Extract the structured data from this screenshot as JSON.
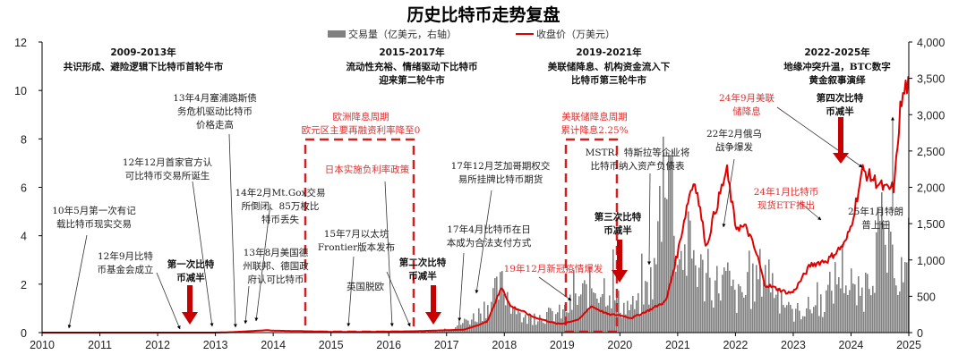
{
  "chart_data": {
    "type": "line+bar",
    "title": "历史比特币走势复盘",
    "legend": [
      {
        "name": "交易量（亿美元，右轴）",
        "type": "bar",
        "color": "#808080"
      },
      {
        "name": "收盘价（万美元）",
        "type": "line",
        "color": "#e00000"
      }
    ],
    "legend_position": "top",
    "x_ticks": [
      "2010",
      "2011",
      "2012",
      "2013",
      "2014",
      "2015",
      "2016",
      "2017",
      "2018",
      "2019",
      "2020",
      "2021",
      "2022",
      "2023",
      "2024",
      "2025"
    ],
    "y_left": {
      "label": "收盘价（万美元）",
      "ticks": [
        0,
        2,
        4,
        6,
        8,
        10,
        12
      ],
      "range": [
        0,
        12
      ]
    },
    "y_right": {
      "label": "交易量（亿美元）",
      "ticks": [
        "0",
        "500",
        "1,000",
        "1,500",
        "2,000",
        "2,500",
        "3,000",
        "3,500",
        "4,000"
      ],
      "range": [
        0,
        4000
      ]
    },
    "grid": false,
    "series": [
      {
        "name": "收盘价（万美元）",
        "axis": "left",
        "x": [
          2010.0,
          2012.0,
          2013.0,
          2013.3,
          2013.9,
          2014.0,
          2014.5,
          2015.0,
          2015.5,
          2016.0,
          2016.5,
          2017.0,
          2017.3,
          2017.5,
          2017.7,
          2017.96,
          2018.1,
          2018.3,
          2018.5,
          2018.9,
          2019.0,
          2019.3,
          2019.5,
          2019.8,
          2020.0,
          2020.2,
          2020.5,
          2020.8,
          2021.0,
          2021.2,
          2021.3,
          2021.5,
          2021.6,
          2021.85,
          2022.0,
          2022.2,
          2022.4,
          2022.5,
          2022.9,
          2023.0,
          2023.3,
          2023.6,
          2023.9,
          2024.0,
          2024.2,
          2024.4,
          2024.6,
          2024.75,
          2024.85,
          2024.95,
          2025.0
        ],
        "y": [
          0.0,
          0.001,
          0.001,
          0.02,
          0.1,
          0.08,
          0.06,
          0.03,
          0.03,
          0.04,
          0.06,
          0.1,
          0.12,
          0.27,
          0.45,
          1.9,
          1.1,
          0.9,
          0.65,
          0.37,
          0.37,
          0.55,
          1.1,
          0.75,
          0.72,
          0.6,
          0.92,
          1.3,
          3.3,
          5.7,
          6.3,
          3.5,
          4.6,
          6.7,
          4.4,
          4.3,
          3.0,
          2.0,
          1.65,
          1.67,
          2.8,
          3.0,
          3.7,
          4.4,
          6.7,
          6.3,
          5.9,
          6.0,
          9.2,
          10.2,
          10.2
        ]
      },
      {
        "name": "交易量（亿美元，右轴）",
        "axis": "right",
        "x": [
          2010,
          2016.5,
          2017.0,
          2017.5,
          2017.96,
          2018.3,
          2019.0,
          2019.5,
          2019.8,
          2020.0,
          2020.3,
          2020.6,
          2020.8,
          2021.0,
          2021.2,
          2021.5,
          2021.85,
          2022.0,
          2022.2,
          2022.5,
          2022.9,
          2023.0,
          2023.5,
          2023.85,
          2024.0,
          2024.2,
          2024.5,
          2024.7,
          2024.9,
          2025.0
        ],
        "y": [
          0,
          5,
          40,
          250,
          700,
          200,
          300,
          700,
          700,
          400,
          400,
          900,
          3300,
          1000,
          1300,
          700,
          800,
          500,
          600,
          1000,
          300,
          300,
          450,
          1000,
          550,
          600,
          1500,
          1000,
          900,
          750
        ]
      }
    ],
    "annotations": {
      "eras": [
        {
          "year_range": "2009-2013年",
          "desc": [
            "共识形成、避险逻辑下比特币首轮牛市"
          ]
        },
        {
          "year_range": "2015-2017年",
          "desc": [
            "流动性充裕、情绪驱动下比特币",
            "迎来第二轮牛市"
          ]
        },
        {
          "year_range": "2019-2021年",
          "desc": [
            "美联储降息、机构资金流入下",
            "比特币第三轮牛市"
          ]
        },
        {
          "year_range": "2022-2025年",
          "desc": [
            "地缘冲突升温，BTC数字",
            "黄金叙事演绎"
          ]
        }
      ],
      "events": [
        {
          "lines": [
            "10年5月第一次有记",
            "载比特币现实交易"
          ],
          "color": "black"
        },
        {
          "lines": [
            "12年9月比特",
            "币基金会成立"
          ],
          "color": "black"
        },
        {
          "lines": [
            "12年12月首家官方认",
            "可比特币交易所诞生"
          ],
          "color": "black"
        },
        {
          "lines": [
            "13年4月塞浦路斯债",
            "务危机驱动比特币",
            "价格走高"
          ],
          "color": "black"
        },
        {
          "lines": [
            "14年2月Mt.Gox交易",
            "所倒闭、85万枚比",
            "特币丢失"
          ],
          "color": "black"
        },
        {
          "lines": [
            "13年8月美国德",
            "州联邦、德国政",
            "府认可比特币"
          ],
          "color": "black"
        },
        {
          "lines": [
            "15年7月以太坊",
            "Frontier版本发布"
          ],
          "color": "black"
        },
        {
          "lines": [
            "英国脱欧"
          ],
          "color": "black"
        },
        {
          "lines": [
            "日本实施负利率政策"
          ],
          "color": "red"
        },
        {
          "lines": [
            "欧洲降息周期",
            "欧元区主要再融资利率降至0"
          ],
          "color": "red"
        },
        {
          "lines": [
            "17年12月芝加哥期权交",
            "易所挂牌比特币期货"
          ],
          "color": "black"
        },
        {
          "lines": [
            "17年4月比特币在日",
            "本成为合法支付方式"
          ],
          "color": "black"
        },
        {
          "lines": [
            "19年12月新冠疫情爆发"
          ],
          "color": "red"
        },
        {
          "lines": [
            "美联储降息周期",
            "累计降息2.25%"
          ],
          "color": "red"
        },
        {
          "lines": [
            "MSTR、特斯拉等企业将",
            "比特币纳入资产负债表"
          ],
          "color": "black"
        },
        {
          "lines": [
            "22年2月俄乌",
            "战争爆发"
          ],
          "color": "black"
        },
        {
          "lines": [
            "24年9月美联",
            "储降息"
          ],
          "color": "red"
        },
        {
          "lines": [
            "24年1月比特币",
            "现货ETF推出"
          ],
          "color": "red"
        },
        {
          "lines": [
            "25年1月特朗",
            "普上任"
          ],
          "color": "black"
        }
      ],
      "halvings": [
        {
          "lines": [
            "第一次比特",
            "币减半"
          ]
        },
        {
          "lines": [
            "第二次比特",
            "币减半"
          ]
        },
        {
          "lines": [
            "第三次比特",
            "币减半"
          ]
        },
        {
          "lines": [
            "第四次比特",
            "币减半"
          ]
        }
      ]
    }
  }
}
